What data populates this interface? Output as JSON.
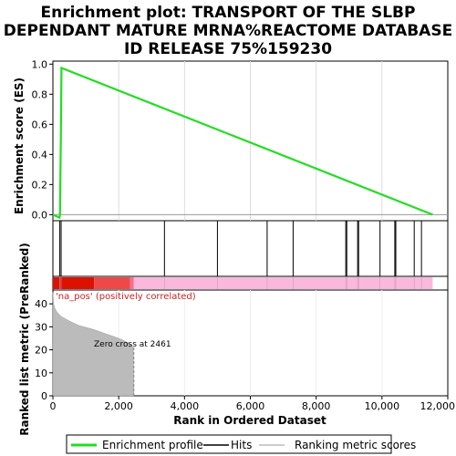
{
  "chart_data": {
    "type": "line",
    "title_lines": [
      "Enrichment plot: TRANSPORT OF THE SLBP",
      "DEPENDANT MATURE MRNA%REACTOME DATABASE",
      "ID RELEASE 75%159230"
    ],
    "xlabel": "Rank in Ordered Dataset",
    "ylabel_top": "Enrichment score (ES)",
    "ylabel_bottom": "Ranked list metric (PreRanked)",
    "xlim": [
      0,
      12000
    ],
    "x_ticks": [
      0,
      2000,
      4000,
      6000,
      8000,
      10000,
      12000
    ],
    "x_tick_labels": [
      "0",
      "2,000",
      "4,000",
      "6,000",
      "8,000",
      "10,000",
      "12,000"
    ],
    "es_ylim": [
      -0.04,
      1.02
    ],
    "es_ticks": [
      0.0,
      0.2,
      0.4,
      0.6,
      0.8,
      1.0
    ],
    "es_tick_labels": [
      "0.0",
      "0.2",
      "0.4",
      "0.6",
      "0.8",
      "1.0"
    ],
    "metric_ylim": [
      0,
      46
    ],
    "metric_ticks": [
      0,
      10,
      20,
      30,
      40
    ],
    "metric_tick_labels": [
      "0",
      "10",
      "20",
      "30",
      "40"
    ],
    "enrichment_profile": {
      "name": "Enrichment profile",
      "color": "#22dd22",
      "x": [
        0,
        200,
        215,
        240,
        250,
        260,
        11540
      ],
      "y": [
        0.0,
        -0.02,
        0.0,
        0.48,
        0.7,
        0.975,
        0.0
      ]
    },
    "hits": {
      "name": "Hits",
      "x": [
        210,
        250,
        3390,
        5000,
        6510,
        7300,
        8900,
        8930,
        9260,
        9290,
        9940,
        10390,
        10420,
        10980,
        11200
      ]
    },
    "ranking_metric": {
      "name": "Ranking metric scores",
      "x": [
        0,
        20,
        60,
        120,
        250,
        500,
        800,
        1200,
        1600,
        2000,
        2300,
        2440,
        2461
      ],
      "y": [
        45,
        40,
        38,
        36.5,
        34.5,
        32.5,
        30.5,
        29,
        27,
        25,
        23,
        21,
        0
      ]
    },
    "zero_cross_rank": 2461,
    "zero_cross_label": "Zero cross at 2461",
    "positive_label": "'na_pos' (positively correlated)",
    "colors": {
      "bar_dark_red": "#dd1100",
      "bar_red": "#f04848",
      "bar_pink": "#f9b8dc",
      "metric_fill": "#bbbbbb",
      "frame": "#000000"
    }
  }
}
